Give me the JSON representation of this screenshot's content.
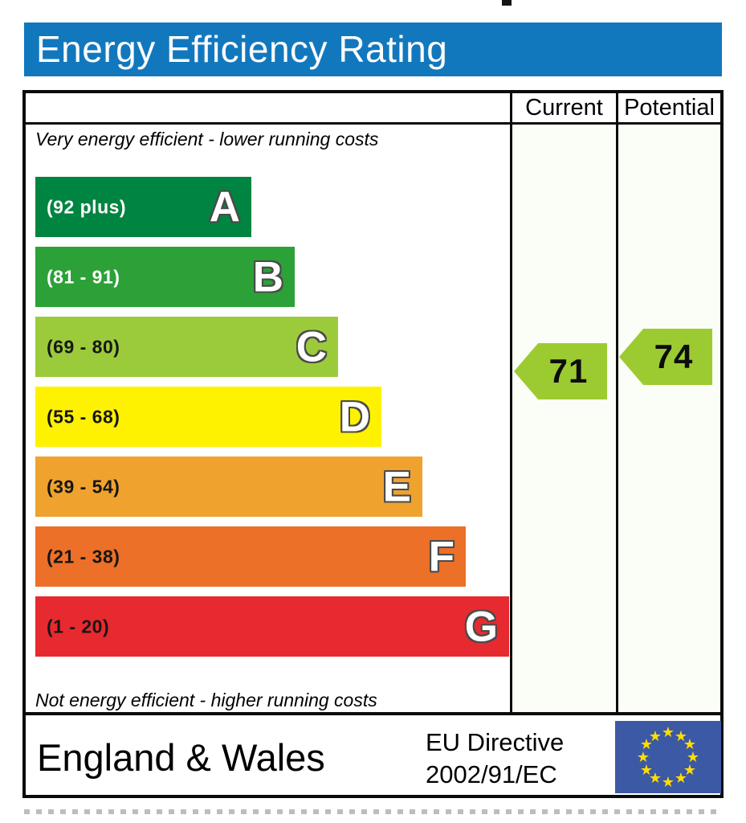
{
  "header": {
    "title": "Energy Efficiency Rating"
  },
  "columns": {
    "current": "Current",
    "potential": "Potential"
  },
  "notes": {
    "top": "Very energy efficient - lower running costs",
    "bottom": "Not energy efficient - higher running costs"
  },
  "chart_data": {
    "type": "bar",
    "title": "Energy Efficiency Rating",
    "subtype": "uk-epc-energy-efficiency-scale",
    "bands": [
      {
        "grade": "A",
        "label": "(92 plus)",
        "range_min": 92,
        "range_max": 100,
        "color": "#008441",
        "label_color": "#ffffff"
      },
      {
        "grade": "B",
        "label": "(81 - 91)",
        "range_min": 81,
        "range_max": 91,
        "color": "#2ca138",
        "label_color": "#ffffff"
      },
      {
        "grade": "C",
        "label": "(69 - 80)",
        "range_min": 69,
        "range_max": 80,
        "color": "#9bcb3b",
        "label_color": "#161616"
      },
      {
        "grade": "D",
        "label": "(55 - 68)",
        "range_min": 55,
        "range_max": 68,
        "color": "#fff200",
        "label_color": "#161616"
      },
      {
        "grade": "E",
        "label": "(39 - 54)",
        "range_min": 39,
        "range_max": 54,
        "color": "#f0a22e",
        "label_color": "#161616"
      },
      {
        "grade": "F",
        "label": "(21 - 38)",
        "range_min": 21,
        "range_max": 38,
        "color": "#ec7028",
        "label_color": "#161616"
      },
      {
        "grade": "G",
        "label": "(1 - 20)",
        "range_min": 1,
        "range_max": 20,
        "color": "#e72a2f",
        "label_color": "#161616"
      }
    ],
    "markers": {
      "current": {
        "value": 71,
        "band": "C",
        "color": "#9ccb31"
      },
      "potential": {
        "value": 74,
        "band": "C",
        "color": "#9ccb31"
      }
    },
    "axis_range": [
      1,
      100
    ],
    "legend_position": "none"
  },
  "footer": {
    "region": "England & Wales",
    "directive_line1": "EU Directive",
    "directive_line2": "2002/91/EC",
    "flag_colors": {
      "background": "#3c59a6",
      "stars": "#ffdd00"
    }
  },
  "accent_colors": {
    "header_background": "#1278be",
    "frame_border": "#0b0b0b"
  }
}
